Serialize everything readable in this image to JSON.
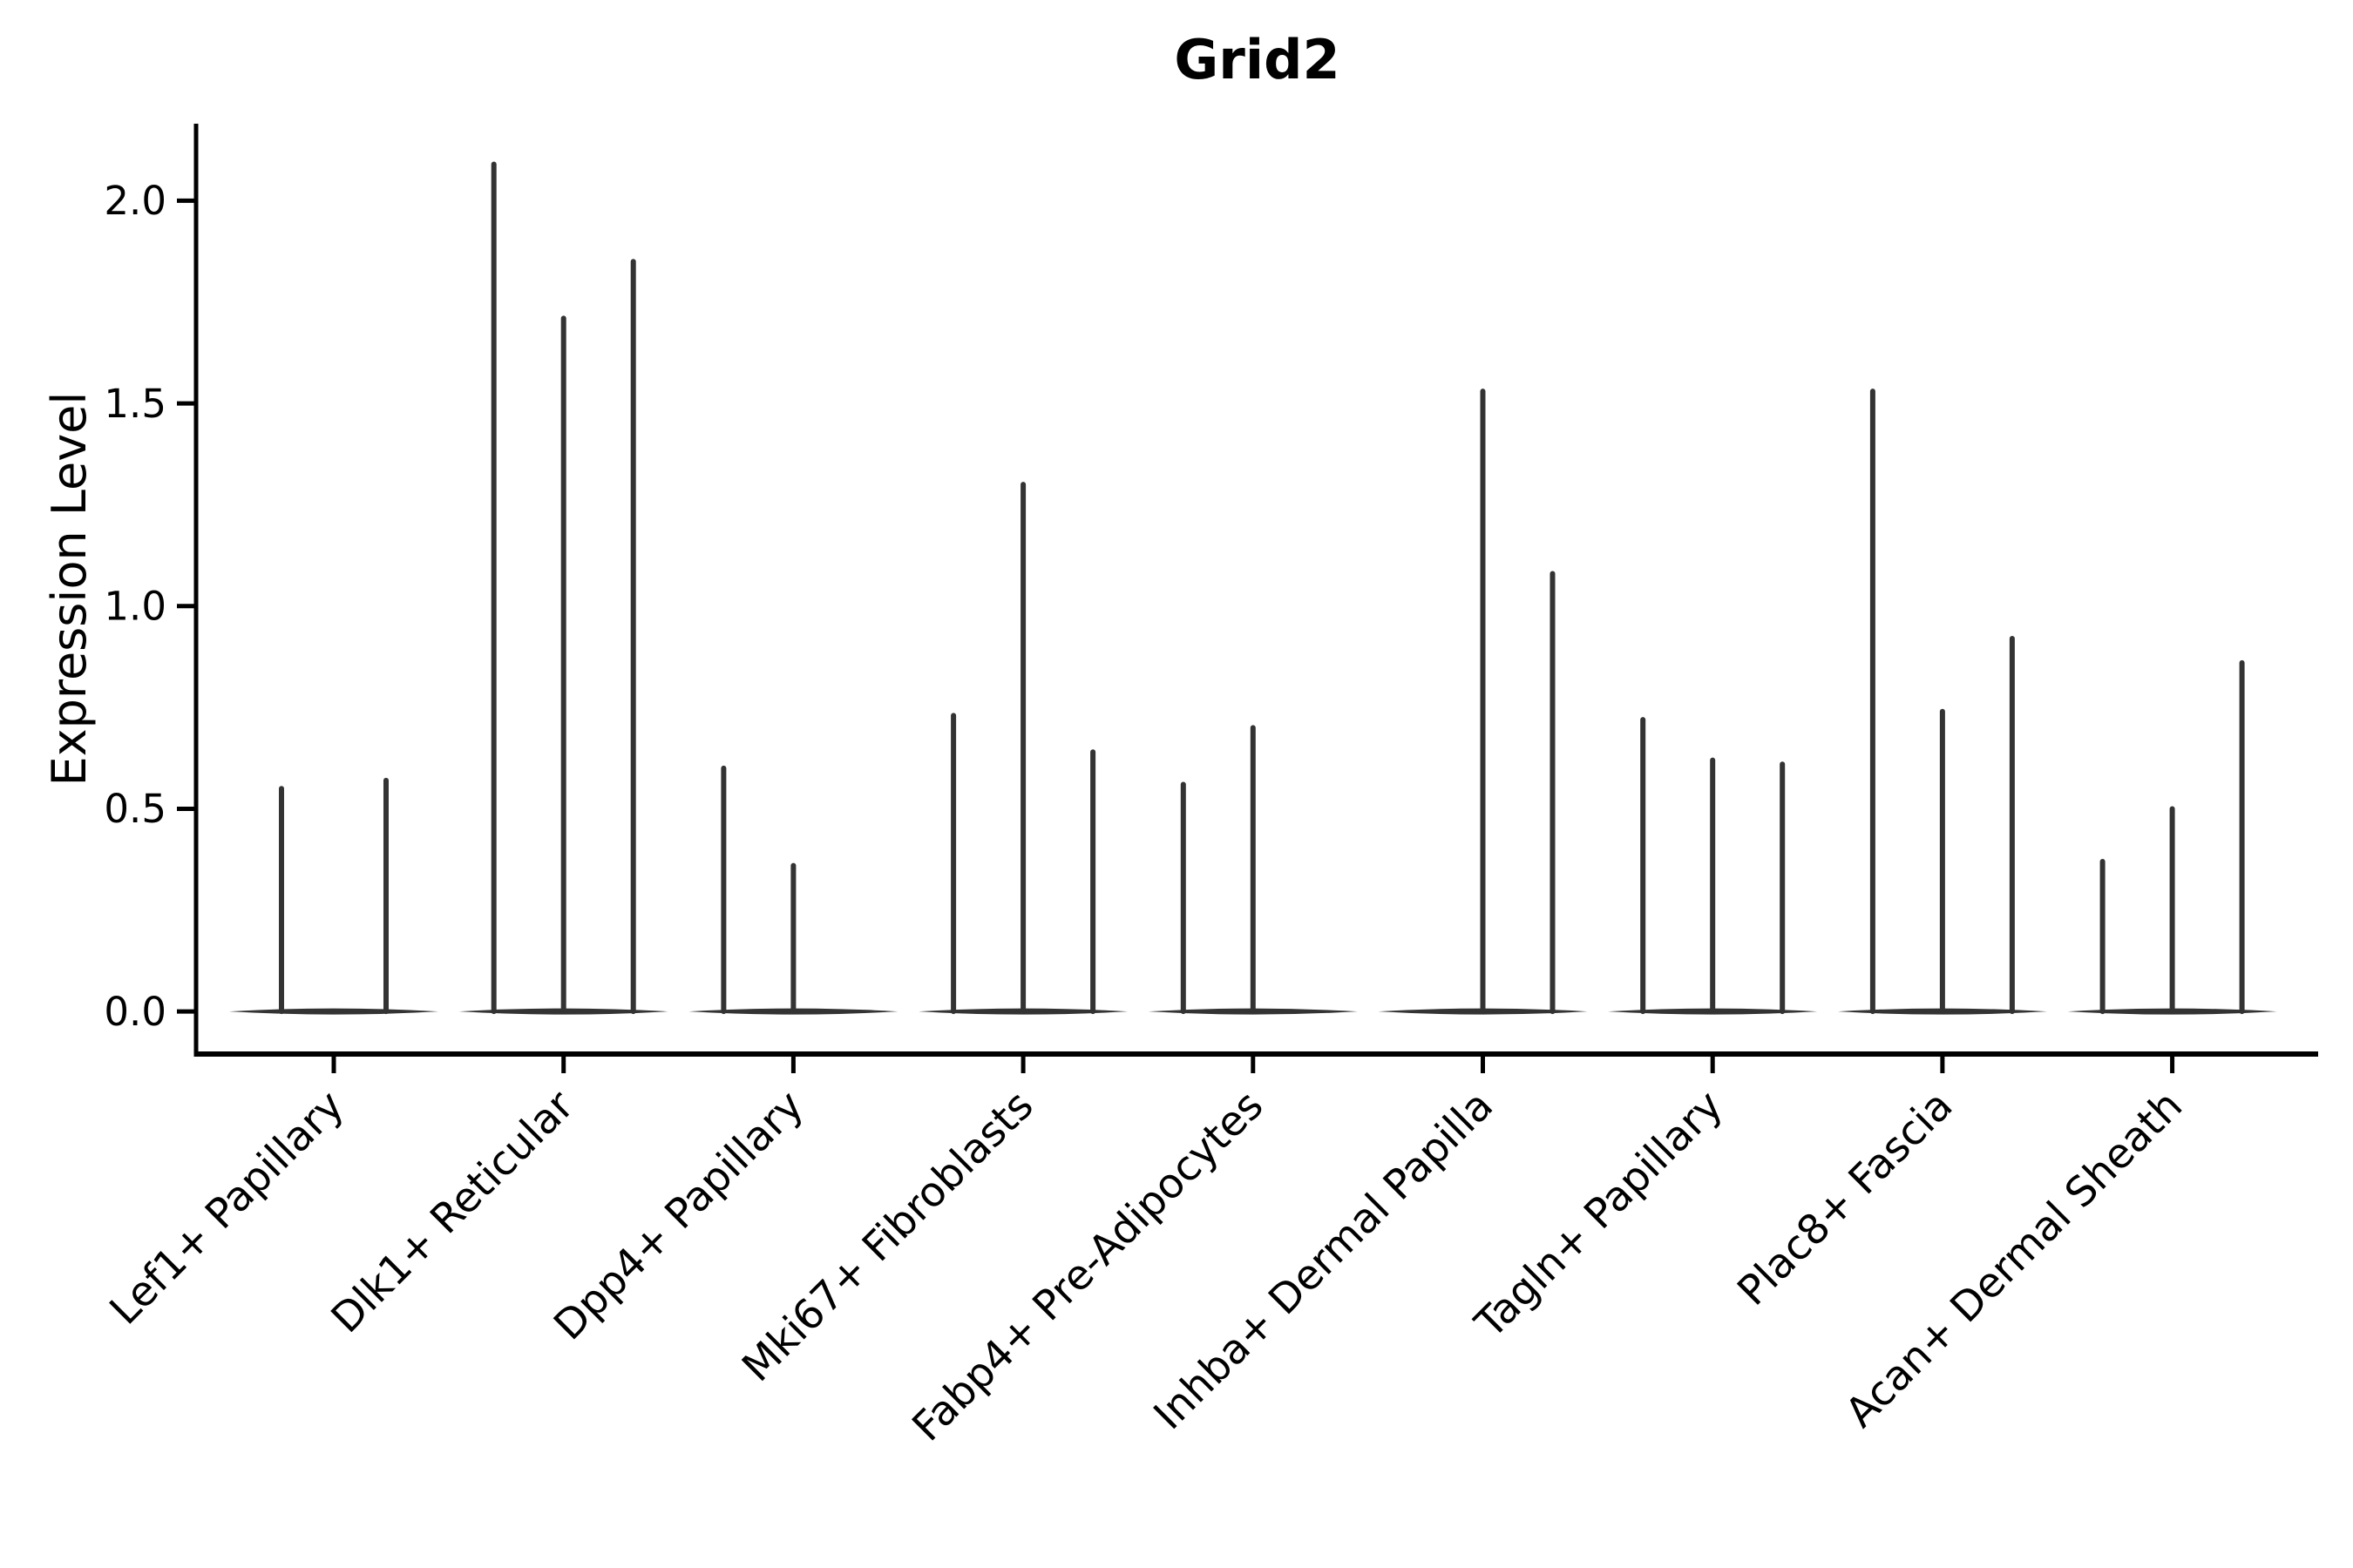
{
  "figure": {
    "title": "Grid2"
  },
  "chart_data": {
    "type": "violin",
    "title": "Grid2",
    "xlabel": "",
    "ylabel": "Expression Level",
    "grid": false,
    "legend": "none",
    "background": "#ffffff",
    "violin_color": "#333333",
    "spine_color": "#000000",
    "ytick_labels": [
      "0.0",
      "0.5",
      "1.0",
      "1.5",
      "2.0"
    ],
    "ytick_values": [
      0.0,
      0.5,
      1.0,
      1.5,
      2.0
    ],
    "ylim": [
      -0.105,
      2.19
    ],
    "categories": [
      "Lef1+ Papillary",
      "Dlk1+ Reticular",
      "Dpp4+ Papillary",
      "Mki67+ Fibroblasts",
      "Fabp4+ Pre-Adipocytes",
      "Inhba+ Dermal Papilla",
      "Tagln+ Papillary",
      "Plac8+ Fascia",
      "Acan+ Dermal Sheath"
    ],
    "series_note": "Each category holds 2-3 needle-thin violins anchored on a flat base at y=0; value listed is the top (max expression) of each violin spike, 0 = flat violin with no spike.",
    "violin_maxima": [
      [
        0.55,
        0.57
      ],
      [
        2.09,
        1.71,
        1.85
      ],
      [
        0.6,
        0.36,
        0.0
      ],
      [
        0.73,
        1.3,
        0.64
      ],
      [
        0.56,
        0.7,
        0.0
      ],
      [
        0.0,
        1.53,
        1.08
      ],
      [
        0.72,
        0.62,
        0.61
      ],
      [
        1.53,
        0.74,
        0.92
      ],
      [
        0.37,
        0.5,
        0.86
      ]
    ]
  }
}
